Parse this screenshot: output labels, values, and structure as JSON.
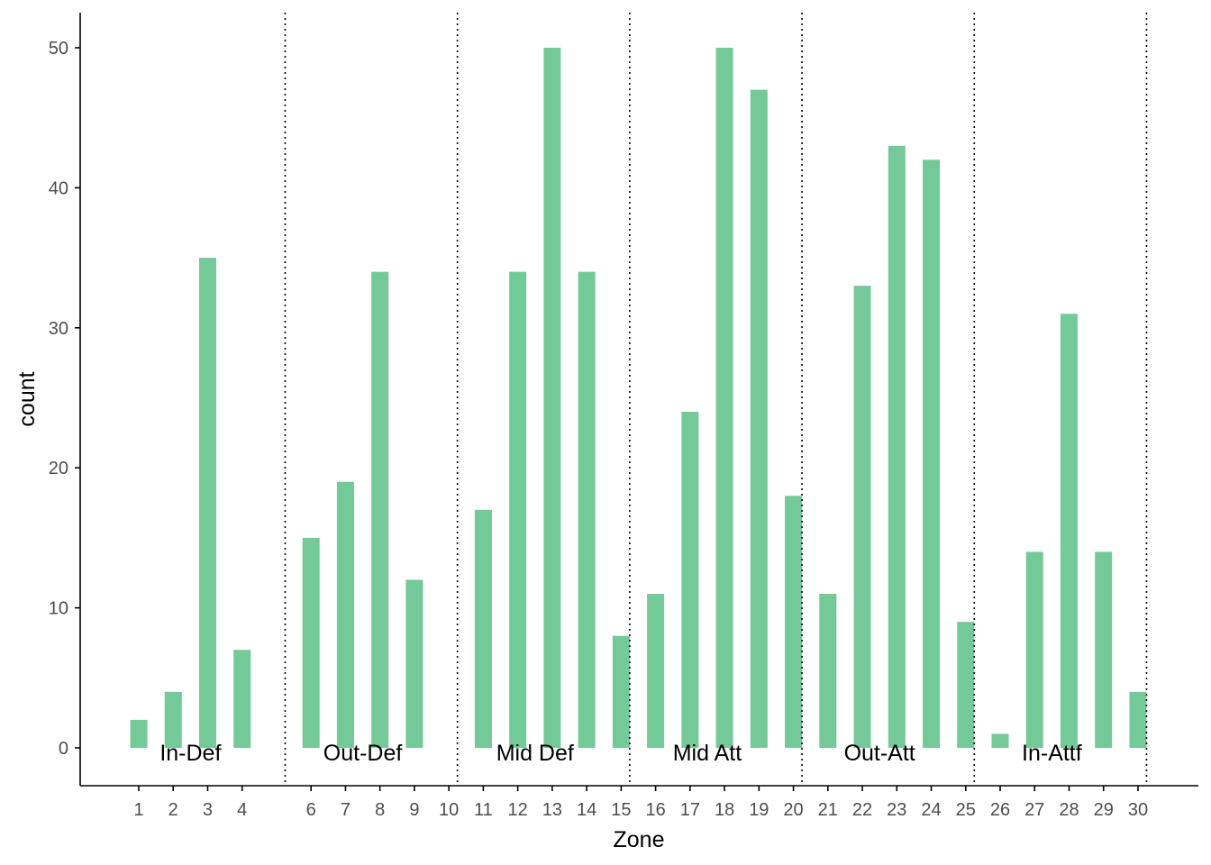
{
  "chart_data": {
    "type": "bar",
    "xlabel": "Zone",
    "ylabel": "count",
    "ylim": [
      -2.8,
      52.6
    ],
    "yticks": [
      0,
      10,
      20,
      30,
      40,
      50
    ],
    "categories": [
      1,
      2,
      3,
      4,
      6,
      7,
      8,
      9,
      10,
      11,
      12,
      13,
      14,
      15,
      16,
      17,
      18,
      19,
      20,
      21,
      22,
      23,
      24,
      25,
      26,
      27,
      28,
      29,
      30
    ],
    "bars": [
      {
        "zone": 1,
        "value": 2
      },
      {
        "zone": 2,
        "value": 4
      },
      {
        "zone": 3,
        "value": 35
      },
      {
        "zone": 4,
        "value": 7
      },
      {
        "zone": 6,
        "value": 15
      },
      {
        "zone": 7,
        "value": 19
      },
      {
        "zone": 8,
        "value": 34
      },
      {
        "zone": 9,
        "value": 12
      },
      {
        "zone": 11,
        "value": 17
      },
      {
        "zone": 12,
        "value": 34
      },
      {
        "zone": 13,
        "value": 50
      },
      {
        "zone": 14,
        "value": 34
      },
      {
        "zone": 15,
        "value": 8
      },
      {
        "zone": 16,
        "value": 11
      },
      {
        "zone": 17,
        "value": 24
      },
      {
        "zone": 18,
        "value": 50
      },
      {
        "zone": 19,
        "value": 47
      },
      {
        "zone": 20,
        "value": 18
      },
      {
        "zone": 21,
        "value": 11
      },
      {
        "zone": 22,
        "value": 33
      },
      {
        "zone": 23,
        "value": 43
      },
      {
        "zone": 24,
        "value": 42
      },
      {
        "zone": 25,
        "value": 9
      },
      {
        "zone": 26,
        "value": 1
      },
      {
        "zone": 27,
        "value": 14
      },
      {
        "zone": 28,
        "value": 31
      },
      {
        "zone": 29,
        "value": 14
      },
      {
        "zone": 30,
        "value": 4
      }
    ],
    "separators": [
      5,
      10,
      15,
      20,
      25,
      30
    ],
    "annotations": [
      {
        "label": "In-Def",
        "zone": 2.5
      },
      {
        "label": "Out-Def",
        "zone": 7.5
      },
      {
        "label": "Mid Def",
        "zone": 12.5
      },
      {
        "label": "Mid Att",
        "zone": 17.5
      },
      {
        "label": "Out-Att",
        "zone": 22.5
      },
      {
        "label": "In-Attf",
        "zone": 27.5
      }
    ],
    "grid": false,
    "colors": {
      "bar": "#73c997",
      "axis": "#000000",
      "tick_label": "#4d4d4d",
      "tick_label_alt": "#5a3a3a"
    }
  }
}
